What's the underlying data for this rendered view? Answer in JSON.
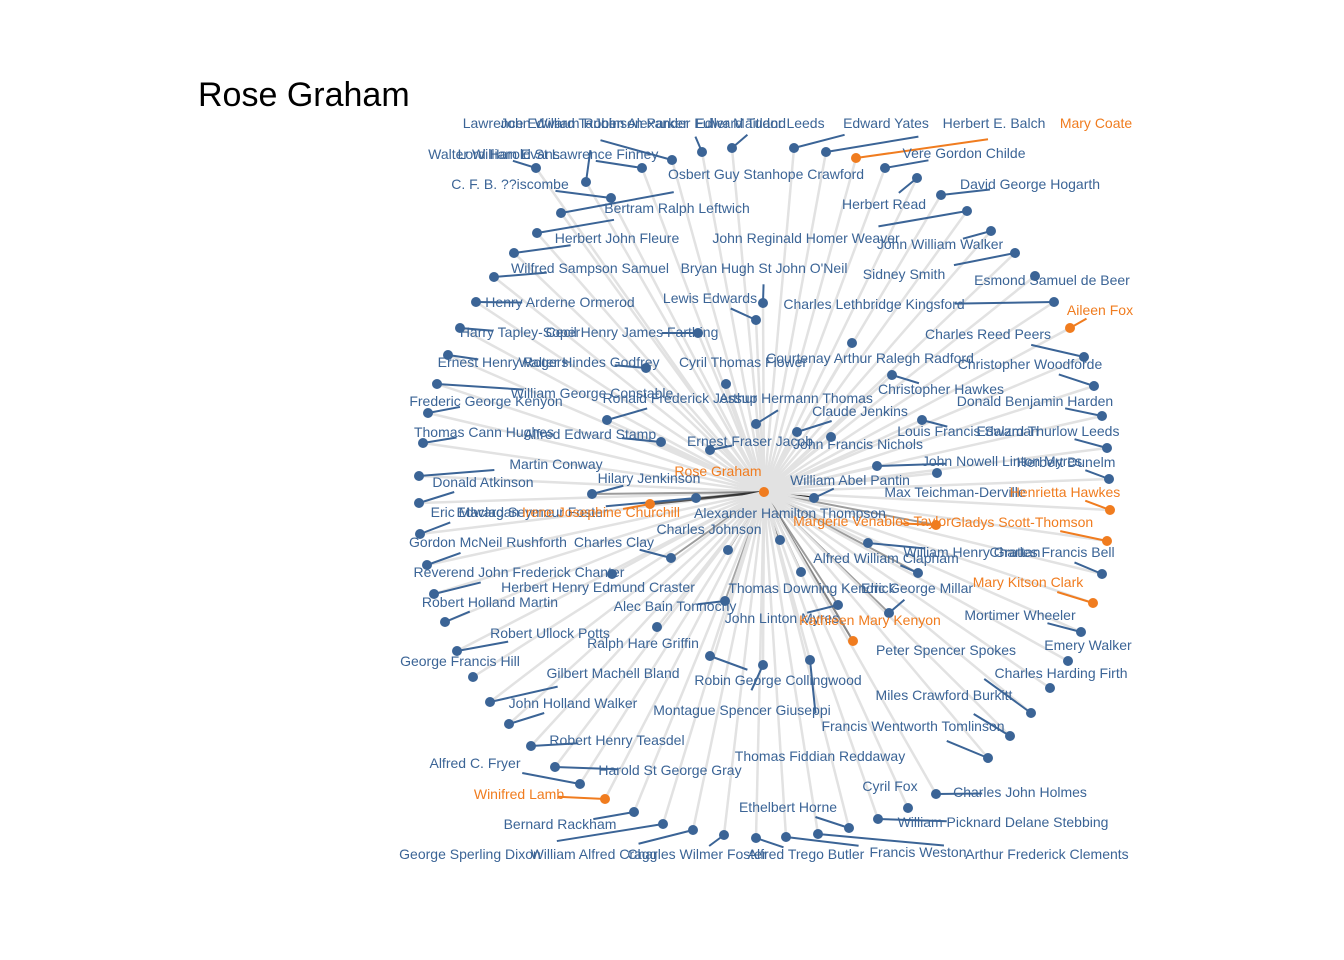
{
  "title": "Rose Graham",
  "colors": {
    "female": "#f07c1f",
    "male": "#3b6496",
    "edge_faint": "#e2e2e2",
    "edge_strong": "#000000",
    "label_line_male": "#3b6496",
    "label_line_female": "#f07c1f"
  },
  "network": {
    "center": "Rose Graham",
    "nodes": [
      {
        "name": "Rose Graham",
        "gender": "female"
      },
      {
        "name": "Lawrence Edward Tanner",
        "gender": "male"
      },
      {
        "name": "John William Robinson Parker",
        "gender": "male"
      },
      {
        "name": "John Alexander Fuller Maitland",
        "gender": "male"
      },
      {
        "name": "Edward Tudor Leeds",
        "gender": "male"
      },
      {
        "name": "Edward Yates",
        "gender": "male"
      },
      {
        "name": "Herbert E. Balch",
        "gender": "male"
      },
      {
        "name": "Mary Coate",
        "gender": "female"
      },
      {
        "name": "Walter William Evans",
        "gender": "male"
      },
      {
        "name": "Lord Harold St Lawrence Finney",
        "gender": "male"
      },
      {
        "name": "Vere Gordon Childe",
        "gender": "male"
      },
      {
        "name": "C. F. B. ??iscombe",
        "gender": "male"
      },
      {
        "name": "Osbert Guy Stanhope Crawford",
        "gender": "male"
      },
      {
        "name": "David George Hogarth",
        "gender": "male"
      },
      {
        "name": "Herbert Read",
        "gender": "male"
      },
      {
        "name": "Bertram Ralph Leftwich",
        "gender": "male"
      },
      {
        "name": "Herbert John Fleure",
        "gender": "male"
      },
      {
        "name": "John Reginald Homer Weaver",
        "gender": "male"
      },
      {
        "name": "John William Walker",
        "gender": "male"
      },
      {
        "name": "Wilfred Sampson Samuel",
        "gender": "male"
      },
      {
        "name": "Bryan Hugh St John O'Neil",
        "gender": "male"
      },
      {
        "name": "Sidney Smith",
        "gender": "male"
      },
      {
        "name": "Esmond Samuel de Beer",
        "gender": "male"
      },
      {
        "name": "Henry Arderne Ormerod",
        "gender": "male"
      },
      {
        "name": "Lewis Edwards",
        "gender": "male"
      },
      {
        "name": "Charles Lethbridge Kingsford",
        "gender": "male"
      },
      {
        "name": "Aileen Fox",
        "gender": "female"
      },
      {
        "name": "Harry Tapley-Soper",
        "gender": "male"
      },
      {
        "name": "Cecil Henry James Farthing",
        "gender": "male"
      },
      {
        "name": "Charles Reed Peers",
        "gender": "male"
      },
      {
        "name": "Ernest Henry Rogers",
        "gender": "male"
      },
      {
        "name": "Walter Hindes Godfrey",
        "gender": "male"
      },
      {
        "name": "Cyril Thomas Flower",
        "gender": "male"
      },
      {
        "name": "Courtenay Arthur Ralegh Radford",
        "gender": "male"
      },
      {
        "name": "Christopher Woodforde",
        "gender": "male"
      },
      {
        "name": "William George Constable",
        "gender": "male"
      },
      {
        "name": "Christopher Hawkes",
        "gender": "male"
      },
      {
        "name": "Frederic George Kenyon",
        "gender": "male"
      },
      {
        "name": "Ronald Frederick Jessup",
        "gender": "male"
      },
      {
        "name": "Arthur Hermann Thomas",
        "gender": "male"
      },
      {
        "name": "Donald Benjamin Harden",
        "gender": "male"
      },
      {
        "name": "Claude Jenkins",
        "gender": "male"
      },
      {
        "name": "Thomas Cann Hughes",
        "gender": "male"
      },
      {
        "name": "Alfred Edward Stamp",
        "gender": "male"
      },
      {
        "name": "Louis Francis Salzman",
        "gender": "male"
      },
      {
        "name": "Edward Thurlow Leeds",
        "gender": "male"
      },
      {
        "name": "Ernest Fraser Jacob",
        "gender": "male"
      },
      {
        "name": "John Francis Nichols",
        "gender": "male"
      },
      {
        "name": "Martin Conway",
        "gender": "male"
      },
      {
        "name": "John Nowell Linton Myres",
        "gender": "male"
      },
      {
        "name": "Herbert Dunelm",
        "gender": "male"
      },
      {
        "name": "Donald Atkinson",
        "gender": "male"
      },
      {
        "name": "Hilary Jenkinson",
        "gender": "male"
      },
      {
        "name": "William Abel Pantin",
        "gender": "male"
      },
      {
        "name": "Max Teichman-Derville",
        "gender": "male"
      },
      {
        "name": "Henrietta Hawkes",
        "gender": "female"
      },
      {
        "name": "Eric Maclagan",
        "gender": "male"
      },
      {
        "name": "Edward Seymour Foster",
        "gender": "male"
      },
      {
        "name": "Irene Josephine Churchill",
        "gender": "female"
      },
      {
        "name": "Alexander Hamilton Thompson",
        "gender": "male"
      },
      {
        "name": "Margerie Venables Taylor",
        "gender": "female"
      },
      {
        "name": "Gladys Scott-Thomson",
        "gender": "female"
      },
      {
        "name": "Charles Johnson",
        "gender": "male"
      },
      {
        "name": "Gordon McNeil Rushforth",
        "gender": "male"
      },
      {
        "name": "Charles Clay",
        "gender": "male"
      },
      {
        "name": "William Henry Grattan",
        "gender": "male"
      },
      {
        "name": "Charles Francis Bell",
        "gender": "male"
      },
      {
        "name": "Alfred William Clapham",
        "gender": "male"
      },
      {
        "name": "Reverend John Frederick Chanter",
        "gender": "male"
      },
      {
        "name": "Mary Kitson Clark",
        "gender": "female"
      },
      {
        "name": "Herbert Henry Edmund Craster",
        "gender": "male"
      },
      {
        "name": "Thomas Downing Kendrick",
        "gender": "male"
      },
      {
        "name": "Eric George Millar",
        "gender": "male"
      },
      {
        "name": "Robert Holland Martin",
        "gender": "male"
      },
      {
        "name": "Alec Bain Tonnochy",
        "gender": "male"
      },
      {
        "name": "Mortimer Wheeler",
        "gender": "male"
      },
      {
        "name": "John Linton Myres",
        "gender": "male"
      },
      {
        "name": "Kathleen Mary Kenyon",
        "gender": "female"
      },
      {
        "name": "Robert Ullock Potts",
        "gender": "male"
      },
      {
        "name": "Ralph Hare Griffin",
        "gender": "male"
      },
      {
        "name": "Emery Walker",
        "gender": "male"
      },
      {
        "name": "Peter Spencer Spokes",
        "gender": "male"
      },
      {
        "name": "George Francis Hill",
        "gender": "male"
      },
      {
        "name": "Charles Harding Firth",
        "gender": "male"
      },
      {
        "name": "Gilbert Machell Bland",
        "gender": "male"
      },
      {
        "name": "Robin George Collingwood",
        "gender": "male"
      },
      {
        "name": "Miles Crawford Burkitt",
        "gender": "male"
      },
      {
        "name": "John Holland Walker",
        "gender": "male"
      },
      {
        "name": "Montague Spencer Giuseppi",
        "gender": "male"
      },
      {
        "name": "Francis Wentworth Tomlinson",
        "gender": "male"
      },
      {
        "name": "Robert Henry Teasdel",
        "gender": "male"
      },
      {
        "name": "Thomas Fiddian Reddaway",
        "gender": "male"
      },
      {
        "name": "Alfred C. Fryer",
        "gender": "male"
      },
      {
        "name": "Harold St George Gray",
        "gender": "male"
      },
      {
        "name": "Cyril Fox",
        "gender": "male"
      },
      {
        "name": "Charles John Holmes",
        "gender": "male"
      },
      {
        "name": "Winifred Lamb",
        "gender": "female"
      },
      {
        "name": "Ethelbert Horne",
        "gender": "male"
      },
      {
        "name": "Bernard Rackham",
        "gender": "male"
      },
      {
        "name": "William Picknard Delane Stebbing",
        "gender": "male"
      },
      {
        "name": "George Sperling Dixon",
        "gender": "male"
      },
      {
        "name": "William Alfred Cragg",
        "gender": "male"
      },
      {
        "name": "Charles Wilmer Foster",
        "gender": "male"
      },
      {
        "name": "Alfred Trego Butler",
        "gender": "male"
      },
      {
        "name": "Francis Weston",
        "gender": "male"
      },
      {
        "name": "Arthur Frederick Clements",
        "gender": "male"
      }
    ]
  }
}
